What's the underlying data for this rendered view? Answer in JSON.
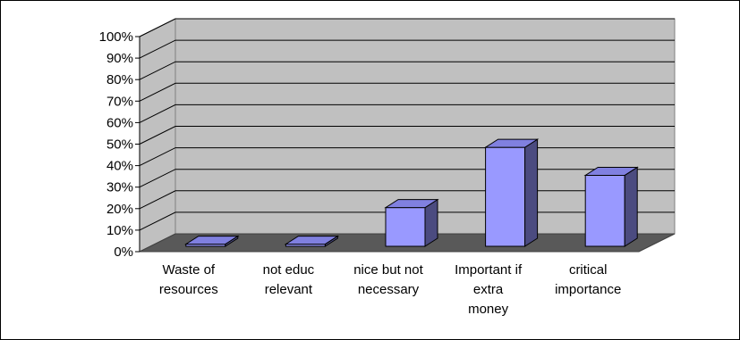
{
  "chart_data": {
    "type": "bar",
    "title": "",
    "xlabel": "",
    "ylabel": "",
    "categories": [
      [
        "Waste of",
        "resources"
      ],
      [
        "not educ",
        "relevant"
      ],
      [
        "nice but not",
        "necessary"
      ],
      [
        "Important if",
        "extra",
        "money"
      ],
      [
        "critical",
        "importance"
      ]
    ],
    "values": [
      0.01,
      0.01,
      0.18,
      0.46,
      0.33
    ],
    "ylim": [
      0,
      1
    ],
    "yticks": [
      "0%",
      "10%",
      "20%",
      "30%",
      "40%",
      "50%",
      "60%",
      "70%",
      "80%",
      "90%",
      "100%"
    ],
    "grid": true,
    "legend": "none",
    "colors": {
      "bar_front": "#9999ff",
      "bar_side": "#4b4b80",
      "bar_top": "#8080e0",
      "wall": "#c0c0c0",
      "floor": "#595959",
      "gridline": "#000000"
    }
  }
}
